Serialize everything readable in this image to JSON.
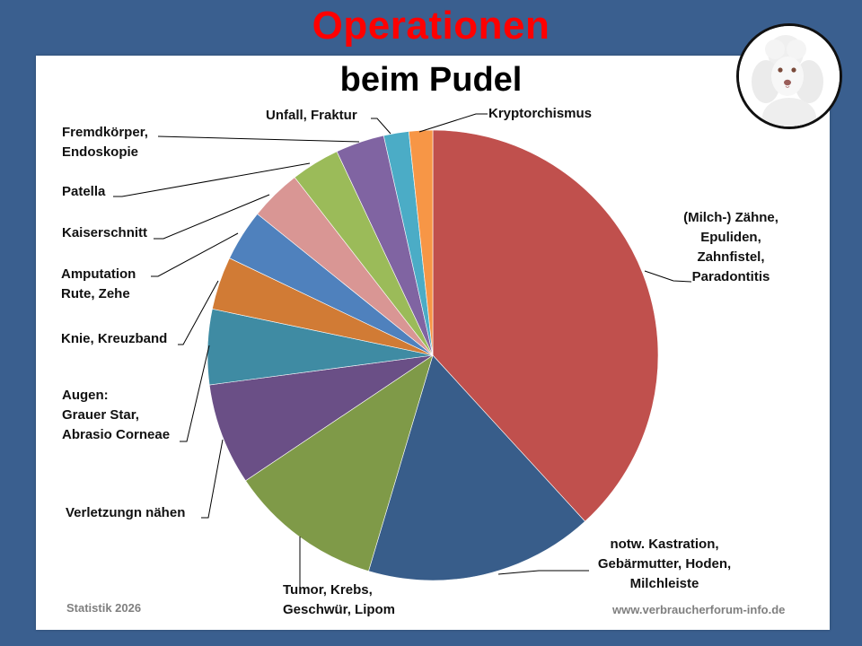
{
  "header": {
    "title": "Operationen",
    "subtitle": "beim Pudel"
  },
  "image": {
    "icon": "poodle-portrait"
  },
  "footer": {
    "left": "Statistik 2026",
    "right": "www.verbraucherforum-info.de"
  },
  "colors": {
    "background": "#3a5f8f",
    "title": "#ff0000"
  },
  "chart_data": {
    "type": "pie",
    "title": "Operationen beim Pudel",
    "start_angle": "12 o'clock, clockwise",
    "categories": [
      "(Milch-) Zähne, Epuliden, Zahnfistel, Paradontitis",
      "notw. Kastration, Gebärmutter, Hoden, Milchleiste",
      "Tumor, Krebs, Geschwür, Lipom",
      "Verletzungn nähen",
      "Augen: Grauer Star, Abrasio Corneae",
      "Knie, Kreuzband",
      "Amputation Rute, Zehe",
      "Kaiserschnitt",
      "Patella",
      "Fremdkörper, Endoskopie",
      "Unfall, Fraktur",
      "Kryptorchismus"
    ],
    "values": [
      38.2,
      16.4,
      11.0,
      7.3,
      5.4,
      3.8,
      3.7,
      3.7,
      3.5,
      3.5,
      1.8,
      1.7
    ],
    "unit": "% (estimated from slice angles)",
    "colors": [
      "#c0504d",
      "#385d8a",
      "#7f9a48",
      "#6a4f86",
      "#3f8ba3",
      "#d17b35",
      "#4f81bd",
      "#d99694",
      "#9bbb59",
      "#8064a2",
      "#4bacc6",
      "#f79646"
    ],
    "legend": "none (leader-line labels)"
  },
  "labels": [
    {
      "lines": [
        "(Milch-) Zähne,",
        "Epuliden,",
        "Zahnfistel,",
        "Paradontitis"
      ]
    },
    {
      "lines": [
        "notw. Kastration,",
        "Gebärmutter, Hoden,",
        "Milchleiste"
      ]
    },
    {
      "lines": [
        "Tumor, Krebs,",
        "Geschwür, Lipom"
      ]
    },
    {
      "lines": [
        "Verletzungn nähen"
      ]
    },
    {
      "lines": [
        "Augen:",
        "Grauer Star,",
        "Abrasio Corneae"
      ]
    },
    {
      "lines": [
        "Knie, Kreuzband"
      ]
    },
    {
      "lines": [
        "Amputation",
        "Rute, Zehe"
      ]
    },
    {
      "lines": [
        "Kaiserschnitt"
      ]
    },
    {
      "lines": [
        "Patella"
      ]
    },
    {
      "lines": [
        "Fremdkörper,",
        "Endoskopie"
      ]
    },
    {
      "lines": [
        "Unfall, Fraktur"
      ]
    },
    {
      "lines": [
        "Kryptorchismus"
      ]
    }
  ]
}
